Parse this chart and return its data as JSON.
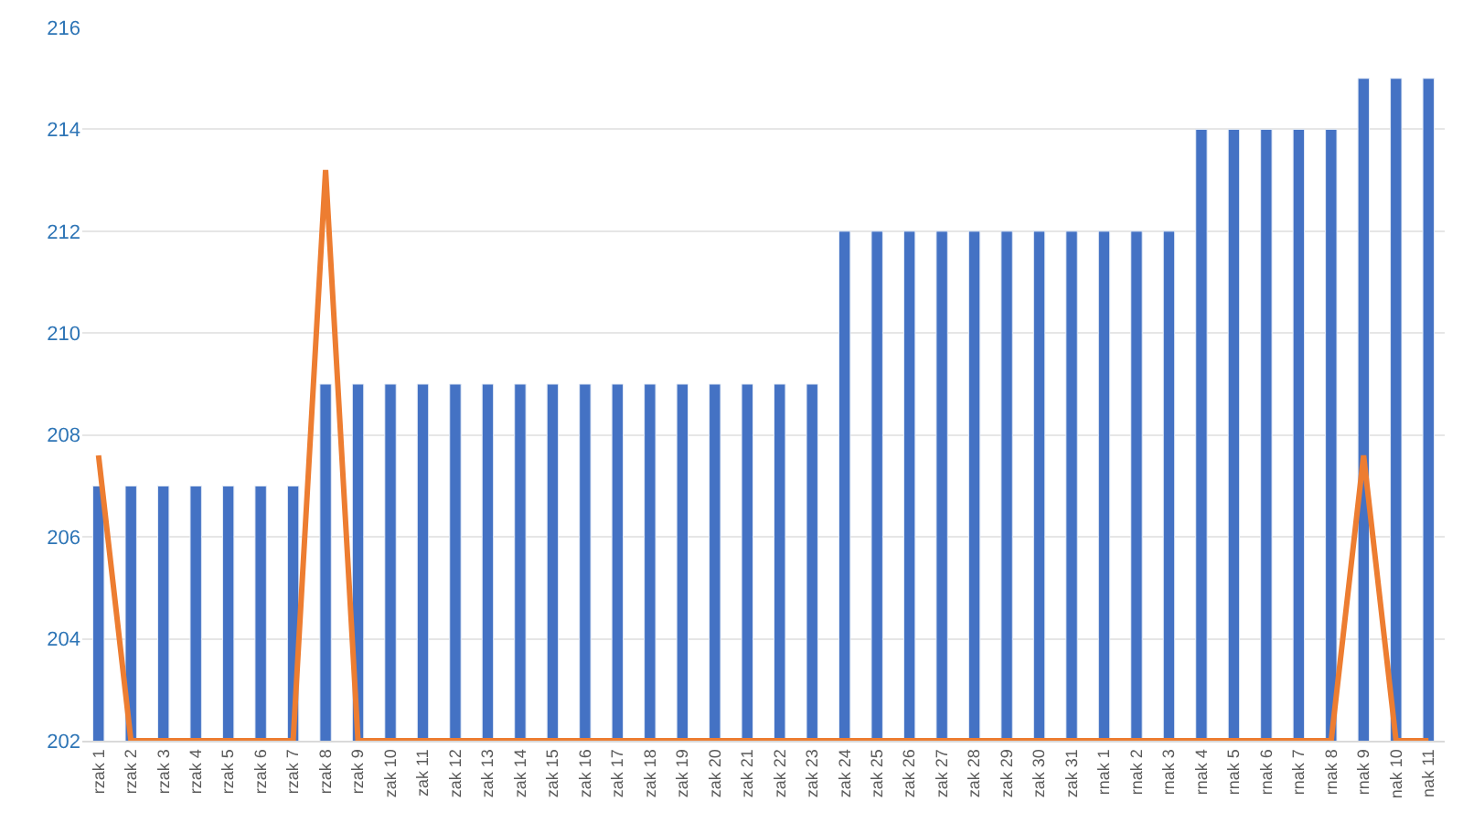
{
  "chart_data": {
    "type": "bar",
    "categories": [
      "rzak 1",
      "rzak 2",
      "rzak 3",
      "rzak 4",
      "rzak 5",
      "rzak 6",
      "rzak 7",
      "rzak 8",
      "rzak 9",
      "zak 10",
      "zak 11",
      "zak 12",
      "zak 13",
      "zak 14",
      "zak 15",
      "zak 16",
      "zak 17",
      "zak 18",
      "zak 19",
      "zak 20",
      "zak 21",
      "zak 22",
      "zak 23",
      "zak 24",
      "zak 25",
      "zak 26",
      "zak 27",
      "zak 28",
      "zak 29",
      "zak 30",
      "zak 31",
      "rnak 1",
      "rnak 2",
      "rnak 3",
      "rnak 4",
      "rnak 5",
      "rnak 6",
      "rnak 7",
      "rnak 8",
      "rnak 9",
      "nak 10",
      "nak 11"
    ],
    "series": [
      {
        "color": "#4472c4",
        "values": [
          207,
          207,
          207,
          207,
          207,
          207,
          207,
          209,
          209,
          209,
          209,
          209,
          209,
          209,
          209,
          209,
          209,
          209,
          209,
          209,
          209,
          209,
          209,
          212,
          212,
          212,
          212,
          212,
          212,
          212,
          212,
          212,
          212,
          212,
          214,
          214,
          214,
          214,
          214,
          215,
          215,
          215
        ]
      },
      {
        "type": "line",
        "color": "#ed7d31",
        "values": [
          207.6,
          202,
          202,
          202,
          202,
          202,
          202,
          213.2,
          202,
          202,
          202,
          202,
          202,
          202,
          202,
          202,
          202,
          202,
          202,
          202,
          202,
          202,
          202,
          202,
          202,
          202,
          202,
          202,
          202,
          202,
          202,
          202,
          202,
          202,
          202,
          202,
          202,
          202,
          202,
          207.6,
          202,
          202
        ]
      }
    ],
    "ylim": [
      202,
      216
    ],
    "yticks": [
      202,
      204,
      206,
      208,
      210,
      212,
      214,
      216
    ],
    "grid": "y",
    "marker": "none",
    "line_style": "solid"
  }
}
